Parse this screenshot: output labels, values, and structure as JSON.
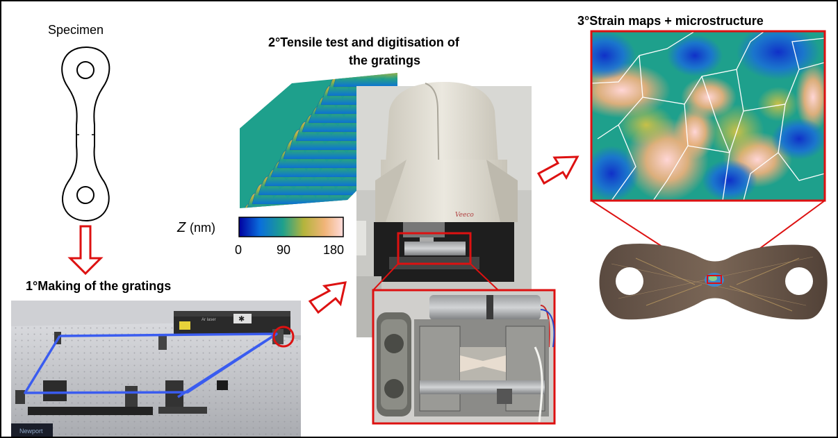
{
  "labels": {
    "specimen": "Specimen",
    "step1": "1°Making of the gratings",
    "step2_line1": "2°Tensile test and digitisation of",
    "step2_line2": "the gratings",
    "step3": "3°Strain maps + microstructure"
  },
  "colorbar": {
    "label_symbol": "Z",
    "label_unit": "(nm)",
    "ticks": [
      "0",
      "90",
      "180"
    ],
    "colors": [
      "#0000a0",
      "#0a6edc",
      "#1ea08c",
      "#b4b43c",
      "#f0b478",
      "#ffdcdc"
    ]
  },
  "photos": {
    "optical_table_brand": "Newport",
    "laser_label": "Ar laser"
  },
  "colors": {
    "arrow_red": "#dd1111",
    "highlight_red": "#dd1111",
    "laser_path_blue": "#3a5cf0"
  }
}
